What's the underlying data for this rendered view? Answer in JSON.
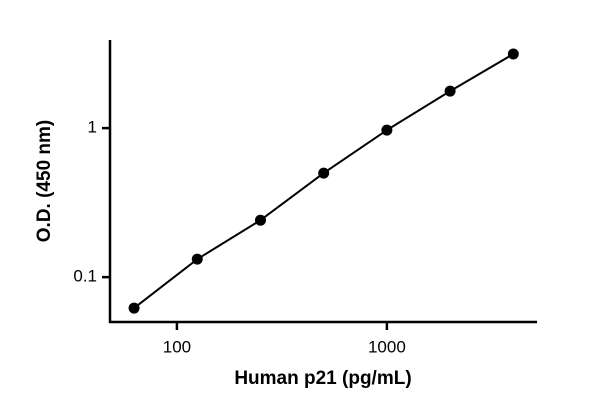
{
  "chart_data": {
    "type": "line",
    "x_label": "Human p21 (pg/mL)",
    "y_label": "O.D. (450 nm)",
    "x": [
      62.5,
      125,
      250,
      500,
      1000,
      2000,
      4000
    ],
    "series": [
      {
        "color": "#000000",
        "values": [
          0.062,
          0.132,
          0.241,
          0.499,
          0.97,
          1.77,
          3.14
        ]
      }
    ],
    "xlim": [
      48,
      5130
    ],
    "xticks": [
      100,
      1000
    ],
    "xscale": "log",
    "ylim": [
      0.05,
      3.9
    ],
    "yticks": [
      0.1,
      1
    ],
    "yscale": "log",
    "grid": false
  }
}
